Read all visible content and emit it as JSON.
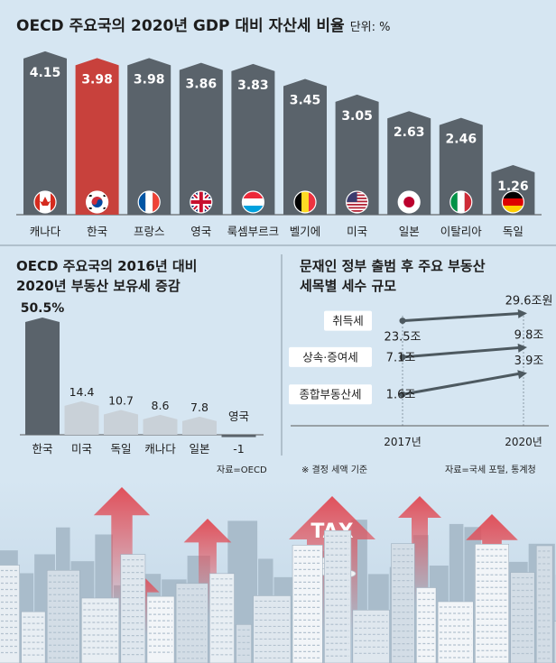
{
  "top": {
    "title": "OECD 주요국의 2020년 GDP 대비 자산세 비율",
    "unit": "단위: %"
  },
  "bottom_left": {
    "title_line1": "OECD 주요국의 2016년 대비",
    "title_line2": "2020년 부동산 보유세 증감",
    "source": "자료=OECD"
  },
  "bottom_right": {
    "title_line1": "문재인 정부 출범 후 주요 부동산",
    "title_line2": "세목별 세수 규모",
    "note": "※ 결정 세액 기준",
    "source": "자료=국세 포털, 통계청"
  },
  "illustration": {
    "tax_label": "TAX"
  },
  "colors": {
    "bar": "#5a636b",
    "highlight": "#c8413c",
    "bar_light": "#c9d1d8",
    "bg": "#d6e6f2"
  },
  "chart_data": [
    {
      "type": "bar",
      "title": "OECD 주요국의 2020년 GDP 대비 자산세 비율",
      "categories": [
        "캐나다",
        "한국",
        "프랑스",
        "영국",
        "룩셈부르크",
        "벨기에",
        "미국",
        "일본",
        "이탈리아",
        "독일"
      ],
      "values": [
        4.15,
        3.98,
        3.98,
        3.86,
        3.83,
        3.45,
        3.05,
        2.63,
        2.46,
        1.26
      ],
      "value_labels": [
        "4.15",
        "3.98",
        "3.98",
        "3.86",
        "3.83",
        "3.45",
        "3.05",
        "2.63",
        "2.46",
        "1.26"
      ],
      "highlight": "한국",
      "ylabel": "단위: %",
      "ylim": [
        0,
        4.4
      ],
      "icons": [
        "canada-flag-icon",
        "korea-flag-icon",
        "france-flag-icon",
        "uk-flag-icon",
        "luxembourg-flag-icon",
        "belgium-flag-icon",
        "usa-flag-icon",
        "japan-flag-icon",
        "italy-flag-icon",
        "germany-flag-icon"
      ]
    },
    {
      "type": "bar",
      "title": "OECD 주요국의 2016년 대비 2020년 부동산 보유세 증감",
      "categories": [
        "한국",
        "미국",
        "독일",
        "캐나다",
        "일본",
        "영국"
      ],
      "values": [
        50.5,
        14.4,
        10.7,
        8.6,
        7.8,
        -1
      ],
      "value_labels": [
        "50.5%",
        "14.4",
        "10.7",
        "8.6",
        "7.8",
        "-1"
      ],
      "highlight": "한국",
      "ylim": [
        -2,
        52
      ]
    },
    {
      "type": "line",
      "title": "문재인 정부 출범 후 주요 부동산 세목별 세수 규모",
      "x": [
        "2017년",
        "2020년"
      ],
      "series": [
        {
          "name": "취득세",
          "values": [
            23.5,
            29.6
          ],
          "labels": [
            "23.5조",
            "29.6조원"
          ]
        },
        {
          "name": "상속·증여세",
          "values": [
            7.1,
            9.8
          ],
          "labels": [
            "7.1조",
            "9.8조"
          ]
        },
        {
          "name": "종합부동산세",
          "values": [
            1.6,
            3.9
          ],
          "labels": [
            "1.6조",
            "3.9조"
          ]
        }
      ]
    }
  ]
}
